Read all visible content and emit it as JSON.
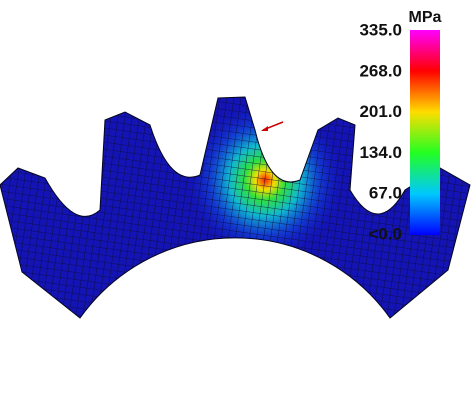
{
  "legend": {
    "unit": "MPa",
    "labels": [
      "335.0",
      "268.0",
      "201.0",
      "134.0",
      "67.0",
      "<0.0"
    ]
  }
}
